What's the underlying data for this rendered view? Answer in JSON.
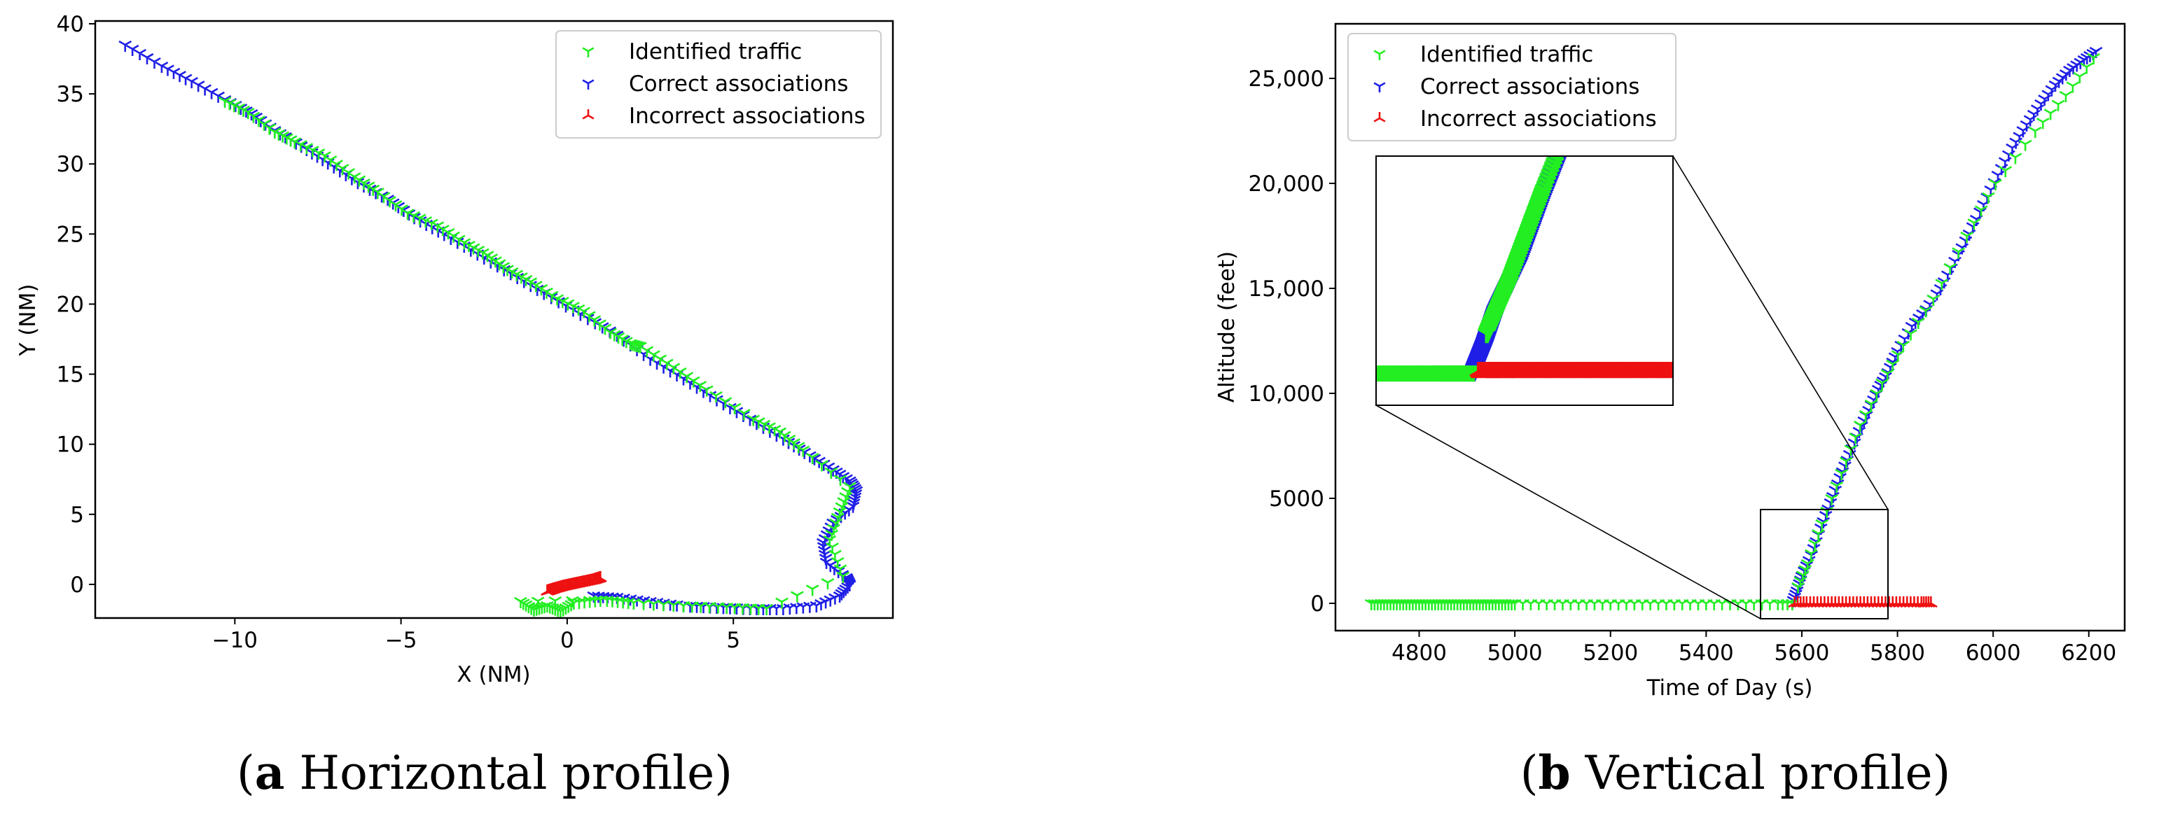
{
  "colors": {
    "identified": "#22ee22",
    "correct": "#1f1fe6",
    "incorrect": "#ee1111"
  },
  "legend": {
    "identified": "Identified traffic",
    "correct": "Correct associations",
    "incorrect": "Incorrect associations"
  },
  "captions": {
    "a_letter": "a",
    "a_text": " Horizontal profile",
    "b_letter": "b",
    "b_text": " Vertical profile"
  },
  "chart_data": [
    {
      "type": "scatter",
      "title": "",
      "xlabel": "X (NM)",
      "ylabel": "Y (NM)",
      "xlim": [
        -14.2,
        9.8
      ],
      "ylim": [
        -2.4,
        40.2
      ],
      "xticks": [
        {
          "v": -10,
          "label": "−10"
        },
        {
          "v": -5,
          "label": "−5"
        },
        {
          "v": 0,
          "label": "0"
        },
        {
          "v": 5,
          "label": "5"
        }
      ],
      "yticks": [
        {
          "v": 0,
          "label": "0"
        },
        {
          "v": 5,
          "label": "5"
        },
        {
          "v": 10,
          "label": "10"
        },
        {
          "v": 15,
          "label": "15"
        },
        {
          "v": 20,
          "label": "20"
        },
        {
          "v": 25,
          "label": "25"
        },
        {
          "v": 30,
          "label": "30"
        },
        {
          "v": 35,
          "label": "35"
        },
        {
          "v": 40,
          "label": "40"
        }
      ],
      "legend_position": "top-right",
      "series": [
        {
          "name": "Correct associations",
          "marker": "tri_down",
          "x": [
            -13.3,
            -12.2,
            -11.3,
            -10.3,
            -9.5,
            -8.8,
            -8.0,
            -7.2,
            -6.3,
            -5.4,
            -4.6,
            -3.7,
            -2.7,
            -1.7,
            -0.7,
            0.4,
            1.5,
            2.5,
            3.5,
            4.5,
            5.5,
            6.5,
            7.3,
            8.0,
            8.5,
            8.7,
            8.6,
            8.0,
            7.7,
            7.8,
            8.4,
            8.5,
            8.2,
            7.5,
            6.5,
            5.5,
            4.5,
            3.5,
            2.5,
            1.5,
            0.8
          ],
          "y": [
            38.5,
            37.0,
            35.9,
            34.6,
            33.6,
            32.4,
            31.3,
            30.1,
            28.7,
            27.5,
            26.2,
            25.0,
            23.6,
            22.2,
            20.8,
            19.3,
            17.8,
            16.1,
            14.7,
            13.2,
            11.8,
            10.4,
            9.2,
            8.2,
            7.4,
            6.7,
            5.6,
            4.4,
            3.0,
            1.6,
            0.5,
            0.0,
            -0.8,
            -1.5,
            -1.7,
            -1.7,
            -1.6,
            -1.5,
            -1.2,
            -0.9,
            -0.8
          ]
        },
        {
          "name": "Identified traffic",
          "marker": "tri_down",
          "x": [
            -10.3,
            -9.6,
            -8.8,
            -8.2,
            -7.3,
            -6.4,
            -5.7,
            -4.8,
            -3.9,
            -3.1,
            -2.4,
            -1.8,
            -1.1,
            -0.3,
            0.5,
            1.3,
            1.9,
            2.2,
            3.2,
            4.2,
            5.6,
            6.4,
            7.1,
            8.5,
            8.2,
            7.9,
            8.3,
            6.0,
            4.8,
            3.5,
            2.0,
            1.2,
            -1.4,
            -1.0,
            -0.6,
            -0.2,
            0.2,
            1.0
          ],
          "y": [
            34.5,
            33.7,
            32.3,
            31.6,
            30.6,
            29.1,
            28.0,
            26.5,
            25.6,
            24.4,
            23.5,
            22.5,
            21.6,
            20.4,
            19.5,
            18.0,
            17.2,
            17.0,
            15.5,
            13.9,
            11.8,
            10.9,
            9.6,
            7.0,
            5.2,
            3.2,
            0.6,
            -1.7,
            -1.6,
            -1.5,
            -1.3,
            -1.1,
            -1.2,
            -1.8,
            -1.5,
            -1.9,
            -1.3,
            -1.1
          ]
        },
        {
          "name": "Incorrect associations",
          "marker": "tri_up",
          "x": [
            -0.6,
            -0.4,
            -0.1,
            0.2,
            0.5,
            0.8,
            1.0
          ],
          "y": [
            -0.5,
            -0.35,
            -0.15,
            0.0,
            0.15,
            0.3,
            0.45
          ]
        }
      ]
    },
    {
      "type": "scatter",
      "title": "",
      "xlabel": "Time of Day (s)",
      "ylabel": "Altitude (feet)",
      "xlim": [
        4625,
        6275
      ],
      "ylim": [
        -1300,
        27600
      ],
      "xticks": [
        {
          "v": 4800,
          "label": "4800"
        },
        {
          "v": 5000,
          "label": "5000"
        },
        {
          "v": 5200,
          "label": "5200"
        },
        {
          "v": 5400,
          "label": "5400"
        },
        {
          "v": 5600,
          "label": "5600"
        },
        {
          "v": 5800,
          "label": "5800"
        },
        {
          "v": 6000,
          "label": "6000"
        },
        {
          "v": 6200,
          "label": "6200"
        }
      ],
      "yticks": [
        {
          "v": 0,
          "label": "0"
        },
        {
          "v": 5000,
          "label": "5000"
        },
        {
          "v": 10000,
          "label": "10,000"
        },
        {
          "v": 15000,
          "label": "15,000"
        },
        {
          "v": 20000,
          "label": "20,000"
        },
        {
          "v": 25000,
          "label": "25,000"
        }
      ],
      "legend_position": "top-left",
      "inset": {
        "xlim": [
          5495,
          5755
        ],
        "ylim": [
          -700,
          4500
        ]
      },
      "series": [
        {
          "name": "Correct associations",
          "marker": "tri_down",
          "x": [
            5580,
            5590,
            5600,
            5620,
            5640,
            5660,
            5680,
            5700,
            5720,
            5740,
            5760,
            5780,
            5800,
            5830,
            5860,
            5890,
            5920,
            5950,
            5980,
            6010,
            6040,
            6070,
            6100,
            6130,
            6160,
            6190,
            6215
          ],
          "y": [
            0,
            600,
            1300,
            2300,
            3600,
            4800,
            6000,
            7100,
            8200,
            9200,
            10200,
            11000,
            12000,
            13200,
            14000,
            15000,
            16300,
            17600,
            19000,
            20400,
            21700,
            22800,
            23800,
            24700,
            25400,
            25900,
            26300
          ]
        },
        {
          "name": "Identified traffic",
          "marker": "tri_down",
          "x": [
            5592,
            5612,
            5642,
            5683,
            5722,
            5768,
            5812,
            5875,
            5945,
            6005,
            6088,
            6152,
            6210
          ],
          "y": [
            800,
            1900,
            3800,
            6200,
            8500,
            10500,
            12300,
            14500,
            17500,
            20000,
            22500,
            24200,
            26000
          ]
        },
        {
          "name": "Identified traffic",
          "marker": "tri_down",
          "role": "ground",
          "x": [
            4700,
            4720,
            4740,
            4760,
            4780,
            4800,
            4820,
            4840,
            4860,
            4880,
            4900,
            4920,
            4940,
            4960,
            4980,
            5000,
            5050,
            5100,
            5150,
            5200,
            5250,
            5300,
            5350,
            5400,
            5450,
            5500,
            5550,
            5580
          ],
          "y": [
            0,
            0,
            0,
            0,
            0,
            0,
            0,
            0,
            0,
            0,
            0,
            0,
            0,
            0,
            0,
            0,
            0,
            0,
            0,
            0,
            0,
            0,
            0,
            0,
            0,
            0,
            0,
            0
          ]
        },
        {
          "name": "Incorrect associations",
          "marker": "tri_up",
          "x": [
            5585,
            5610,
            5640,
            5670,
            5700,
            5730,
            5760,
            5790,
            5820,
            5850,
            5870
          ],
          "y": [
            0,
            0,
            0,
            0,
            0,
            0,
            0,
            0,
            0,
            0,
            0
          ]
        }
      ]
    }
  ]
}
